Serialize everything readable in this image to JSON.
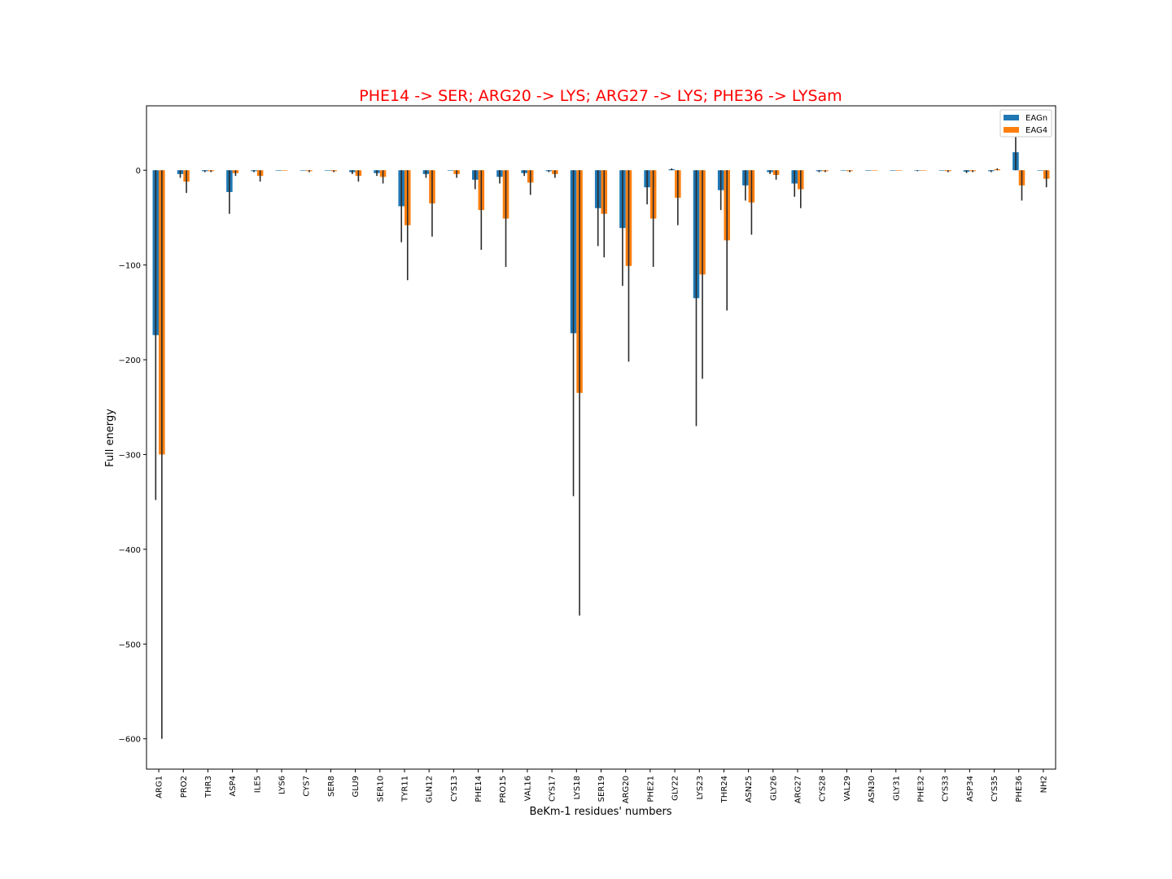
{
  "chart_data": {
    "type": "bar",
    "title": "PHE14 -> SER; ARG20 -> LYS; ARG27 -> LYS; PHE36 -> LYSam",
    "title_color": "#ff0000",
    "xlabel": "BeKm-1 residues' numbers",
    "ylabel": "Full energy",
    "ylim": [
      -632,
      68
    ],
    "yticks": [
      0,
      -100,
      -200,
      -300,
      -400,
      -500,
      -600
    ],
    "ytick_labels": [
      "0",
      "−100",
      "−200",
      "−300",
      "−400",
      "−500",
      "−600"
    ],
    "legend": "top-right",
    "grid": false,
    "categories": [
      "ARG1",
      "PRO2",
      "THR3",
      "ASP4",
      "ILE5",
      "LYS6",
      "CYS7",
      "SER8",
      "GLU9",
      "SER10",
      "TYR11",
      "GLN12",
      "CYS13",
      "PHE14",
      "PRO15",
      "VAL16",
      "CYS17",
      "LYS18",
      "SER19",
      "ARG20",
      "PHE21",
      "GLY22",
      "LYS23",
      "THR24",
      "ASN25",
      "GLY26",
      "ARG27",
      "CYS28",
      "VAL29",
      "ASN30",
      "GLY31",
      "PHE32",
      "CYS33",
      "ASP34",
      "CYS35",
      "PHE36",
      "NH2"
    ],
    "series": [
      {
        "name": "EAGn",
        "color": "#1f77b4",
        "values": [
          -174,
          -4,
          -1,
          -23,
          -1,
          0,
          0,
          0,
          -2,
          -3,
          -38,
          -4,
          0,
          -10,
          -7,
          -3,
          -1,
          -172,
          -40,
          -61,
          -18,
          1,
          -135,
          -21,
          -16,
          -2,
          -14,
          -1,
          0,
          0,
          0,
          -0.5,
          0,
          -1.5,
          -1,
          19,
          0
        ],
        "errors": [
          174,
          4,
          1,
          23,
          1,
          0,
          0,
          0,
          2,
          3,
          38,
          4,
          0,
          10,
          7,
          3,
          1,
          172,
          40,
          61,
          18,
          1,
          135,
          21,
          16,
          2,
          14,
          1,
          0,
          0,
          0,
          0.5,
          0,
          1.5,
          1,
          19,
          0
        ]
      },
      {
        "name": "EAG4",
        "color": "#ff7f0e",
        "values": [
          -300,
          -12,
          -1,
          -3,
          -6,
          0,
          -1,
          -1,
          -6,
          -7,
          -58,
          -35,
          -4,
          -42,
          -51,
          -13,
          -4,
          -235,
          -46,
          -101,
          -51,
          -29,
          -110,
          -74,
          -34,
          -5,
          -20,
          -1,
          -1,
          0,
          0,
          0,
          -1,
          -1,
          1,
          -16,
          -9
        ],
        "errors": [
          300,
          12,
          1,
          3,
          6,
          0,
          1,
          1,
          6,
          7,
          58,
          35,
          4,
          42,
          51,
          13,
          4,
          235,
          46,
          101,
          51,
          29,
          110,
          74,
          34,
          5,
          20,
          1,
          1,
          0,
          0,
          0,
          1,
          1,
          1,
          16,
          9
        ]
      }
    ]
  }
}
